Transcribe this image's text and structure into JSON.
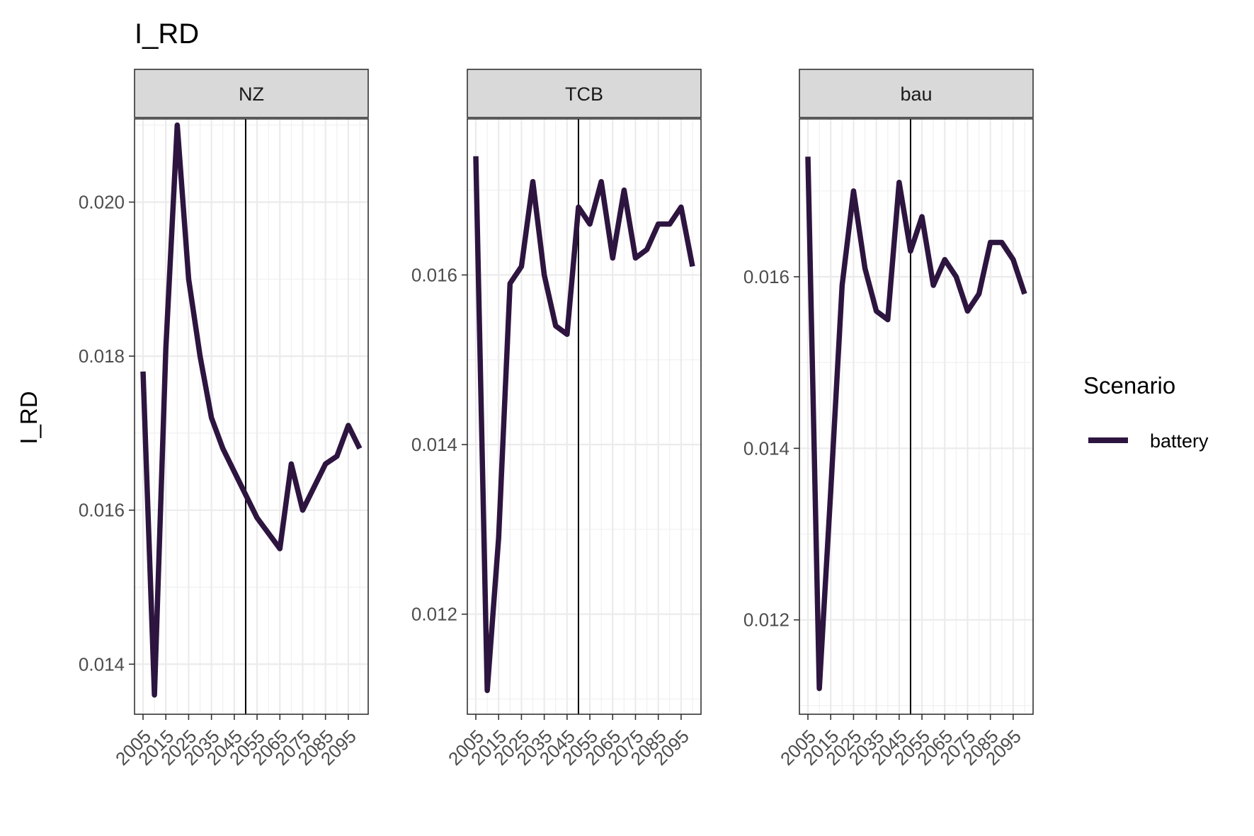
{
  "chart_data": {
    "type": "line",
    "title": "I_RD",
    "ylabel": "I_RD",
    "xlabel": "",
    "x": [
      2005,
      2010,
      2015,
      2020,
      2025,
      2030,
      2035,
      2040,
      2045,
      2050,
      2055,
      2060,
      2065,
      2070,
      2075,
      2080,
      2085,
      2090,
      2095,
      2100
    ],
    "xticks": [
      2005,
      2015,
      2025,
      2035,
      2045,
      2055,
      2065,
      2075,
      2085,
      2095
    ],
    "vline": 2050,
    "grid": true,
    "legend": {
      "title": "Scenario",
      "position": "right",
      "entries": [
        "battery"
      ]
    },
    "line_color": "#2d1540",
    "panels": [
      {
        "name": "NZ",
        "ylim": [
          0.01335,
          0.02108
        ],
        "yticks": [
          0.014,
          0.016,
          0.018,
          0.02
        ],
        "ytick_labels": [
          "0.014",
          "0.016",
          "0.018",
          "0.020"
        ],
        "series": [
          {
            "name": "battery",
            "values": [
              0.0178,
              0.0136,
              0.0181,
              0.021,
              0.019,
              0.018,
              0.0172,
              0.0168,
              0.0165,
              0.0162,
              0.0159,
              0.0157,
              0.0155,
              0.0166,
              0.016,
              0.0163,
              0.0166,
              0.0167,
              0.0171,
              0.0168
            ]
          }
        ]
      },
      {
        "name": "TCB",
        "ylim": [
          0.01082,
          0.01784
        ],
        "yticks": [
          0.012,
          0.014,
          0.016
        ],
        "ytick_labels": [
          "0.012",
          "0.014",
          "0.016"
        ],
        "series": [
          {
            "name": "battery",
            "values": [
              0.0174,
              0.0111,
              0.0129,
              0.0159,
              0.0161,
              0.0171,
              0.016,
              0.0154,
              0.0153,
              0.0168,
              0.0166,
              0.0171,
              0.0162,
              0.017,
              0.0162,
              0.0163,
              0.0166,
              0.0166,
              0.0168,
              0.0161
            ]
          }
        ]
      },
      {
        "name": "bau",
        "ylim": [
          0.0109,
          0.01784
        ],
        "yticks": [
          0.012,
          0.014,
          0.016
        ],
        "ytick_labels": [
          "0.012",
          "0.014",
          "0.016"
        ],
        "series": [
          {
            "name": "battery",
            "values": [
              0.0174,
              0.0112,
              0.0135,
              0.0159,
              0.017,
              0.0161,
              0.0156,
              0.0155,
              0.0171,
              0.0163,
              0.0167,
              0.0159,
              0.0162,
              0.016,
              0.0156,
              0.0158,
              0.0164,
              0.0164,
              0.0162,
              0.0158
            ]
          }
        ]
      }
    ]
  }
}
